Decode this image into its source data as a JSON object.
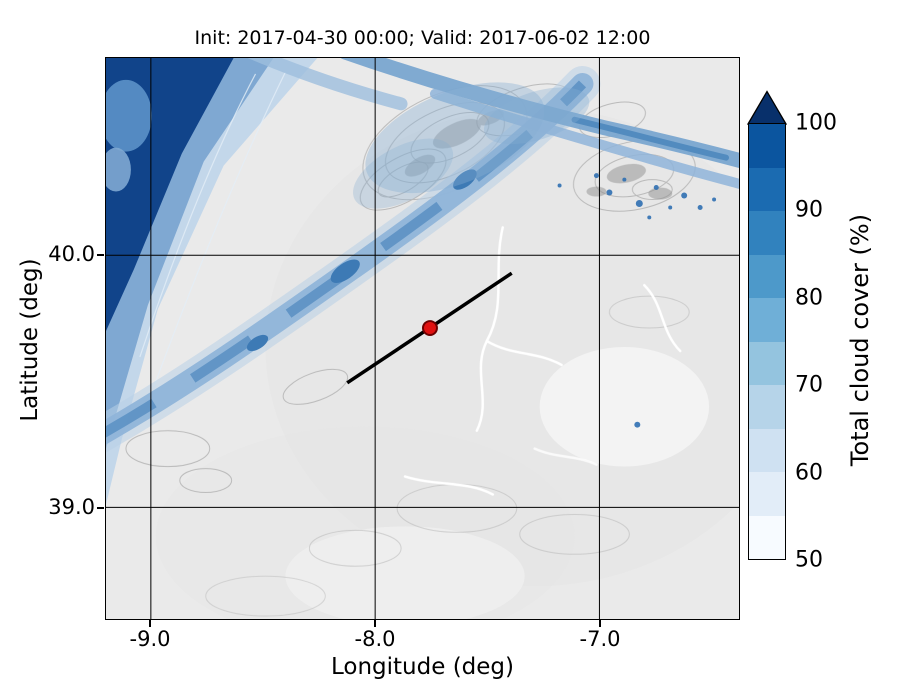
{
  "figure": {
    "title": "Init: 2017-04-30 00:00; Valid: 2017-06-02 12:00",
    "xlabel": "Longitude (deg)",
    "ylabel": "Latitude (deg)",
    "x_ticks": [
      "-9.0",
      "-8.0",
      "-7.0"
    ],
    "y_ticks": [
      "40.0",
      "39.0"
    ],
    "colorbar": {
      "label": "Total cloud cover (%)",
      "ticks": [
        "100",
        "90",
        "80",
        "70",
        "60",
        "50"
      ],
      "segment_colors_top_to_bottom": [
        "#0b559f",
        "#1b6bb1",
        "#3182be",
        "#4d99ca",
        "#6fafd7",
        "#94c4df",
        "#b6d4e9",
        "#cfe1f2",
        "#e2edf8",
        "#f7fbff"
      ],
      "extend_max_color": "#08306b"
    },
    "colors": {
      "land_base": "#eaeaea",
      "terrain_contour": "#b2b2b2",
      "terrain_peak": "#8f8f8f",
      "river": "#ffffff",
      "ocean_deep": "#11448a",
      "coastal_mid": "#7fa8d2",
      "coastal_light": "#c3d7ea",
      "band_halo": "#b8cfe6",
      "band_light": "#8fb4d9",
      "band_mid": "#5d92c4",
      "band_dark": "#3d7ab5",
      "streak": "#7aa6d0",
      "speckle": "#2f6fb2",
      "grid": "#000000",
      "transect": "#000000",
      "marker_fill": "#e01111",
      "marker_edge": "#6b0000"
    }
  },
  "chart_data": {
    "type": "heatmap",
    "subtype": "filled-contour cloud-cover map over grayscale terrain",
    "title": "Init: 2017-04-30 00:00; Valid: 2017-06-02 12:00",
    "xlabel": "Longitude (deg)",
    "ylabel": "Latitude (deg)",
    "xlim": [
      -9.2,
      -6.38
    ],
    "ylim": [
      38.56,
      40.78
    ],
    "x_ticks": [
      -9.0,
      -8.0,
      -7.0
    ],
    "y_ticks": [
      39.0,
      40.0
    ],
    "grid": true,
    "colorbar": {
      "label": "Total cloud cover (%)",
      "min": 50,
      "max": 100,
      "ticks": [
        50,
        60,
        70,
        80,
        90,
        100
      ],
      "extend": "max",
      "colormap": "Blues"
    },
    "features": [
      {
        "name": "atlantic-overcast",
        "value_pct": "95-100",
        "description": "Solid dark-blue overcast over the Atlantic in the NW corner",
        "lon_range": [
          -9.2,
          -8.6
        ],
        "lat_range": [
          39.75,
          40.78
        ]
      },
      {
        "name": "coastal-gradient",
        "value_pct": "50-90",
        "description": "Cloud cover decreasing inland in bands parallel to the coast",
        "lon_range": [
          -9.2,
          -8.25
        ],
        "lat_range": [
          39.2,
          40.78
        ]
      },
      {
        "name": "sw-ne-frontal-band",
        "value_pct": "60-90",
        "description": "Narrow cloud band crossing the domain from SW to NE",
        "path_lonlat": [
          [
            -9.2,
            39.4
          ],
          [
            -8.3,
            39.85
          ],
          [
            -7.6,
            40.4
          ],
          [
            -7.1,
            40.75
          ]
        ]
      },
      {
        "name": "northern-streaks",
        "value_pct": "60-85",
        "description": "Two elongated cloud streaks across the northern part of the domain",
        "path_lonlat": [
          [
            -8.0,
            40.78
          ],
          [
            -7.0,
            40.45
          ],
          [
            -6.4,
            40.3
          ]
        ]
      },
      {
        "name": "scattered-cells",
        "value_pct": "80-100",
        "description": "Small dense cloud cells in the NE quadrant",
        "lon_range": [
          -7.15,
          -6.55
        ],
        "lat_range": [
          40.1,
          40.5
        ]
      },
      {
        "name": "mostly-clear-interior",
        "value_pct": "<50",
        "description": "Interior terrain shown in grayscale, below the 50% shading threshold",
        "lon_range": [
          -8.6,
          -6.38
        ],
        "lat_range": [
          38.56,
          40.0
        ]
      },
      {
        "name": "transect-line",
        "style": "solid black line",
        "from_lonlat": [
          -8.12,
          39.49
        ],
        "to_lonlat": [
          -7.39,
          39.93
        ]
      },
      {
        "name": "station-marker",
        "style": "red filled circle",
        "lonlat": [
          -7.76,
          39.71
        ]
      }
    ]
  }
}
